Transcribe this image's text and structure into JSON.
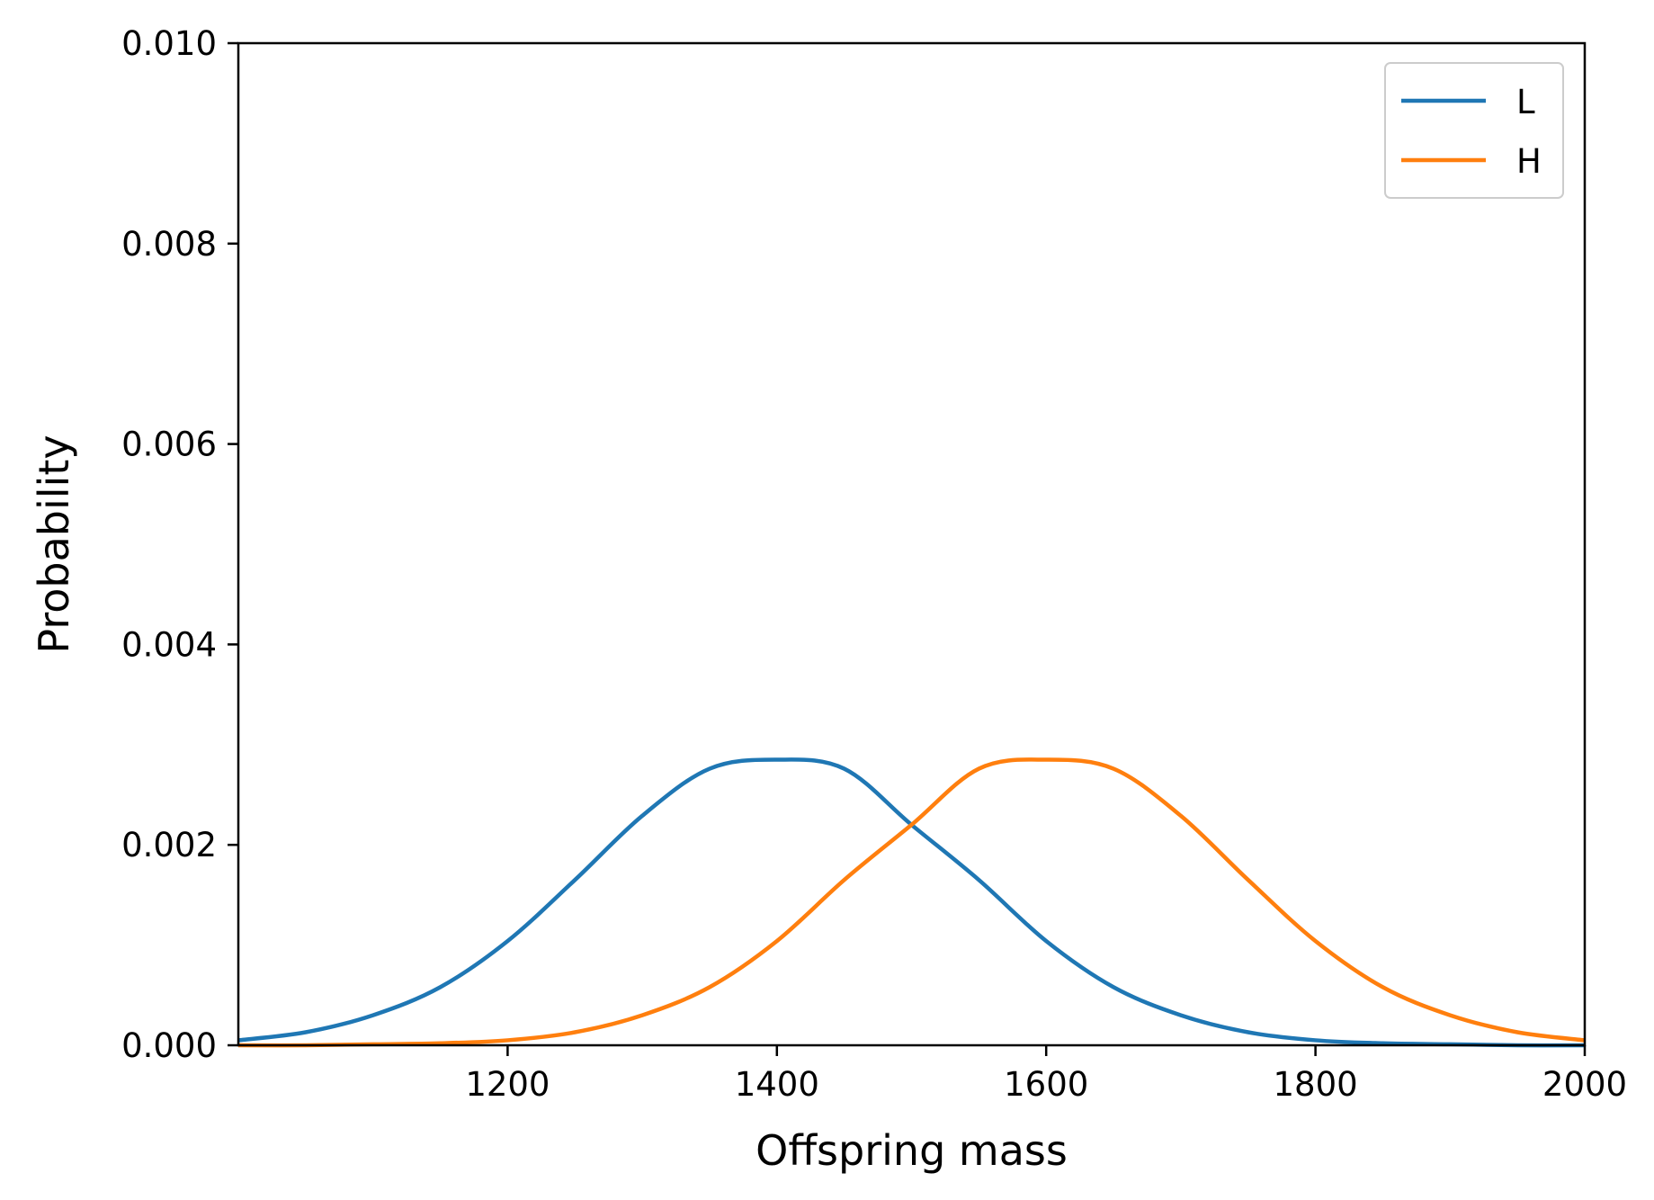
{
  "chart_data": {
    "type": "line",
    "title": "",
    "xlabel": "Offspring mass",
    "ylabel": "Probability",
    "xlim": [
      1000,
      2000
    ],
    "ylim": [
      0,
      0.01
    ],
    "xticks": [
      1200,
      1400,
      1600,
      1800,
      2000
    ],
    "xtick_labels": [
      "1200",
      "1400",
      "1600",
      "1800",
      "2000"
    ],
    "yticks": [
      0,
      0.002,
      0.004,
      0.006,
      0.008,
      0.01
    ],
    "ytick_labels": [
      "0.000",
      "0.002",
      "0.004",
      "0.006",
      "0.008",
      "0.010"
    ],
    "grid": false,
    "legend_position": "top-right",
    "x": [
      1000,
      1050,
      1100,
      1150,
      1200,
      1250,
      1300,
      1350,
      1400,
      1450,
      1500,
      1550,
      1600,
      1650,
      1700,
      1750,
      1800,
      1850,
      1900,
      1950,
      2000
    ],
    "series": [
      {
        "name": "L",
        "color": "#1f77b4",
        "values": [
          5e-05,
          0.00013,
          0.0003,
          0.00058,
          0.00104,
          0.00165,
          0.00229,
          0.00276,
          0.00285,
          0.00276,
          0.0022,
          0.00165,
          0.00104,
          0.00058,
          0.0003,
          0.00013,
          5e-05,
          2e-05,
          1e-05,
          0.0,
          0.0
        ]
      },
      {
        "name": "H",
        "color": "#ff7f0e",
        "values": [
          0.0,
          0.0,
          1e-05,
          2e-05,
          5e-05,
          0.00013,
          0.0003,
          0.00058,
          0.00104,
          0.00165,
          0.0022,
          0.00276,
          0.00285,
          0.00276,
          0.00229,
          0.00165,
          0.00104,
          0.00058,
          0.0003,
          0.00013,
          5e-05
        ]
      }
    ]
  }
}
